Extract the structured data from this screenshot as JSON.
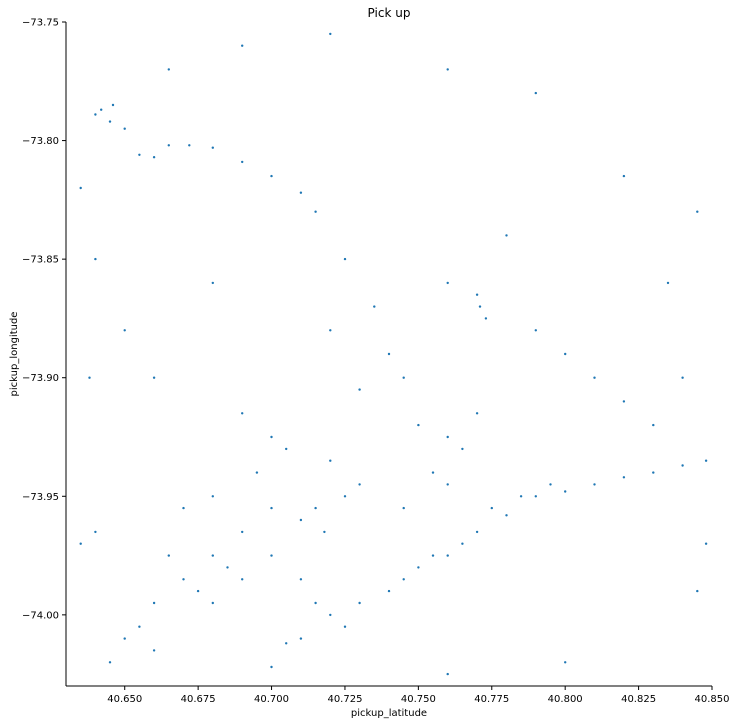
{
  "chart_data": {
    "type": "scatter",
    "title": "Pick up",
    "xlabel": "pickup_latitude",
    "ylabel": "pickup_longitude",
    "xlim": [
      40.63,
      40.85
    ],
    "ylim": [
      -74.03,
      -73.75
    ],
    "grid": false,
    "legend": "none",
    "point_color": "#1f77b4",
    "x_ticks": [
      40.65,
      40.675,
      40.7,
      40.725,
      40.75,
      40.775,
      40.8,
      40.825,
      40.85
    ],
    "x_tick_labels": [
      "40.650",
      "40.675",
      "40.700",
      "40.725",
      "40.750",
      "40.775",
      "40.800",
      "40.825",
      "40.850"
    ],
    "y_ticks": [
      -73.75,
      -73.8,
      -73.85,
      -73.9,
      -73.95,
      -74.0
    ],
    "y_tick_labels": [
      "−73.75",
      "−73.80",
      "−73.85",
      "−73.90",
      "−73.95",
      "−74.00"
    ],
    "series": [
      {
        "points": [
          [
            40.64,
            -73.789
          ],
          [
            40.642,
            -73.787
          ],
          [
            40.645,
            -73.792
          ],
          [
            40.646,
            -73.785
          ],
          [
            40.65,
            -73.795
          ],
          [
            40.655,
            -73.806
          ],
          [
            40.66,
            -73.807
          ],
          [
            40.665,
            -73.802
          ],
          [
            40.672,
            -73.802
          ],
          [
            40.68,
            -73.803
          ],
          [
            40.69,
            -73.809
          ],
          [
            40.7,
            -73.815
          ],
          [
            40.71,
            -73.822
          ],
          [
            40.715,
            -73.83
          ],
          [
            40.725,
            -73.85
          ],
          [
            40.735,
            -73.87
          ],
          [
            40.745,
            -73.9
          ],
          [
            40.75,
            -73.92
          ],
          [
            40.77,
            -73.865
          ],
          [
            40.771,
            -73.87
          ],
          [
            40.773,
            -73.875
          ],
          [
            40.7,
            -73.975
          ],
          [
            40.71,
            -73.985
          ],
          [
            40.715,
            -73.995
          ],
          [
            40.72,
            -74.0
          ],
          [
            40.71,
            -74.01
          ],
          [
            40.705,
            -74.012
          ],
          [
            40.725,
            -74.005
          ],
          [
            40.73,
            -73.995
          ],
          [
            40.74,
            -73.99
          ],
          [
            40.745,
            -73.985
          ],
          [
            40.75,
            -73.98
          ],
          [
            40.755,
            -73.975
          ],
          [
            40.76,
            -73.975
          ],
          [
            40.765,
            -73.97
          ],
          [
            40.77,
            -73.965
          ],
          [
            40.775,
            -73.955
          ],
          [
            40.78,
            -73.958
          ],
          [
            40.785,
            -73.95
          ],
          [
            40.79,
            -73.95
          ],
          [
            40.795,
            -73.945
          ],
          [
            40.8,
            -73.948
          ],
          [
            40.81,
            -73.945
          ],
          [
            40.82,
            -73.942
          ],
          [
            40.83,
            -73.94
          ],
          [
            40.84,
            -73.937
          ],
          [
            40.848,
            -73.935
          ],
          [
            40.76,
            -73.925
          ],
          [
            40.77,
            -73.915
          ],
          [
            40.765,
            -73.93
          ],
          [
            40.755,
            -73.94
          ],
          [
            40.745,
            -73.955
          ],
          [
            40.76,
            -73.945
          ],
          [
            40.71,
            -73.96
          ],
          [
            40.715,
            -73.955
          ],
          [
            40.718,
            -73.965
          ],
          [
            40.725,
            -73.95
          ],
          [
            40.73,
            -73.945
          ],
          [
            40.72,
            -73.935
          ],
          [
            40.68,
            -73.975
          ],
          [
            40.685,
            -73.98
          ],
          [
            40.69,
            -73.985
          ],
          [
            40.675,
            -73.99
          ],
          [
            40.67,
            -73.985
          ],
          [
            40.665,
            -73.975
          ],
          [
            40.68,
            -73.995
          ],
          [
            40.66,
            -73.995
          ],
          [
            40.655,
            -74.005
          ],
          [
            40.65,
            -74.01
          ],
          [
            40.69,
            -73.965
          ],
          [
            40.7,
            -73.955
          ],
          [
            40.68,
            -73.95
          ],
          [
            40.67,
            -73.955
          ],
          [
            40.64,
            -73.965
          ],
          [
            40.635,
            -73.97
          ],
          [
            40.705,
            -73.93
          ],
          [
            40.7,
            -73.925
          ],
          [
            40.69,
            -73.915
          ],
          [
            40.695,
            -73.94
          ],
          [
            40.66,
            -73.9
          ],
          [
            40.65,
            -73.88
          ],
          [
            40.64,
            -73.85
          ],
          [
            40.68,
            -73.86
          ],
          [
            40.72,
            -73.88
          ],
          [
            40.73,
            -73.905
          ],
          [
            40.74,
            -73.89
          ],
          [
            40.76,
            -73.86
          ],
          [
            40.78,
            -73.84
          ],
          [
            40.79,
            -73.88
          ],
          [
            40.8,
            -73.89
          ],
          [
            40.81,
            -73.9
          ],
          [
            40.82,
            -73.91
          ],
          [
            40.83,
            -73.92
          ],
          [
            40.84,
            -73.9
          ],
          [
            40.835,
            -73.86
          ],
          [
            40.845,
            -73.83
          ],
          [
            40.82,
            -73.815
          ],
          [
            40.79,
            -73.78
          ],
          [
            40.76,
            -73.77
          ],
          [
            40.72,
            -73.755
          ],
          [
            40.69,
            -73.76
          ],
          [
            40.665,
            -73.77
          ],
          [
            40.635,
            -73.82
          ],
          [
            40.638,
            -73.9
          ],
          [
            40.645,
            -74.02
          ],
          [
            40.66,
            -74.015
          ],
          [
            40.7,
            -74.022
          ],
          [
            40.76,
            -74.025
          ],
          [
            40.8,
            -74.02
          ],
          [
            40.845,
            -73.99
          ],
          [
            40.848,
            -73.97
          ]
        ]
      }
    ]
  }
}
